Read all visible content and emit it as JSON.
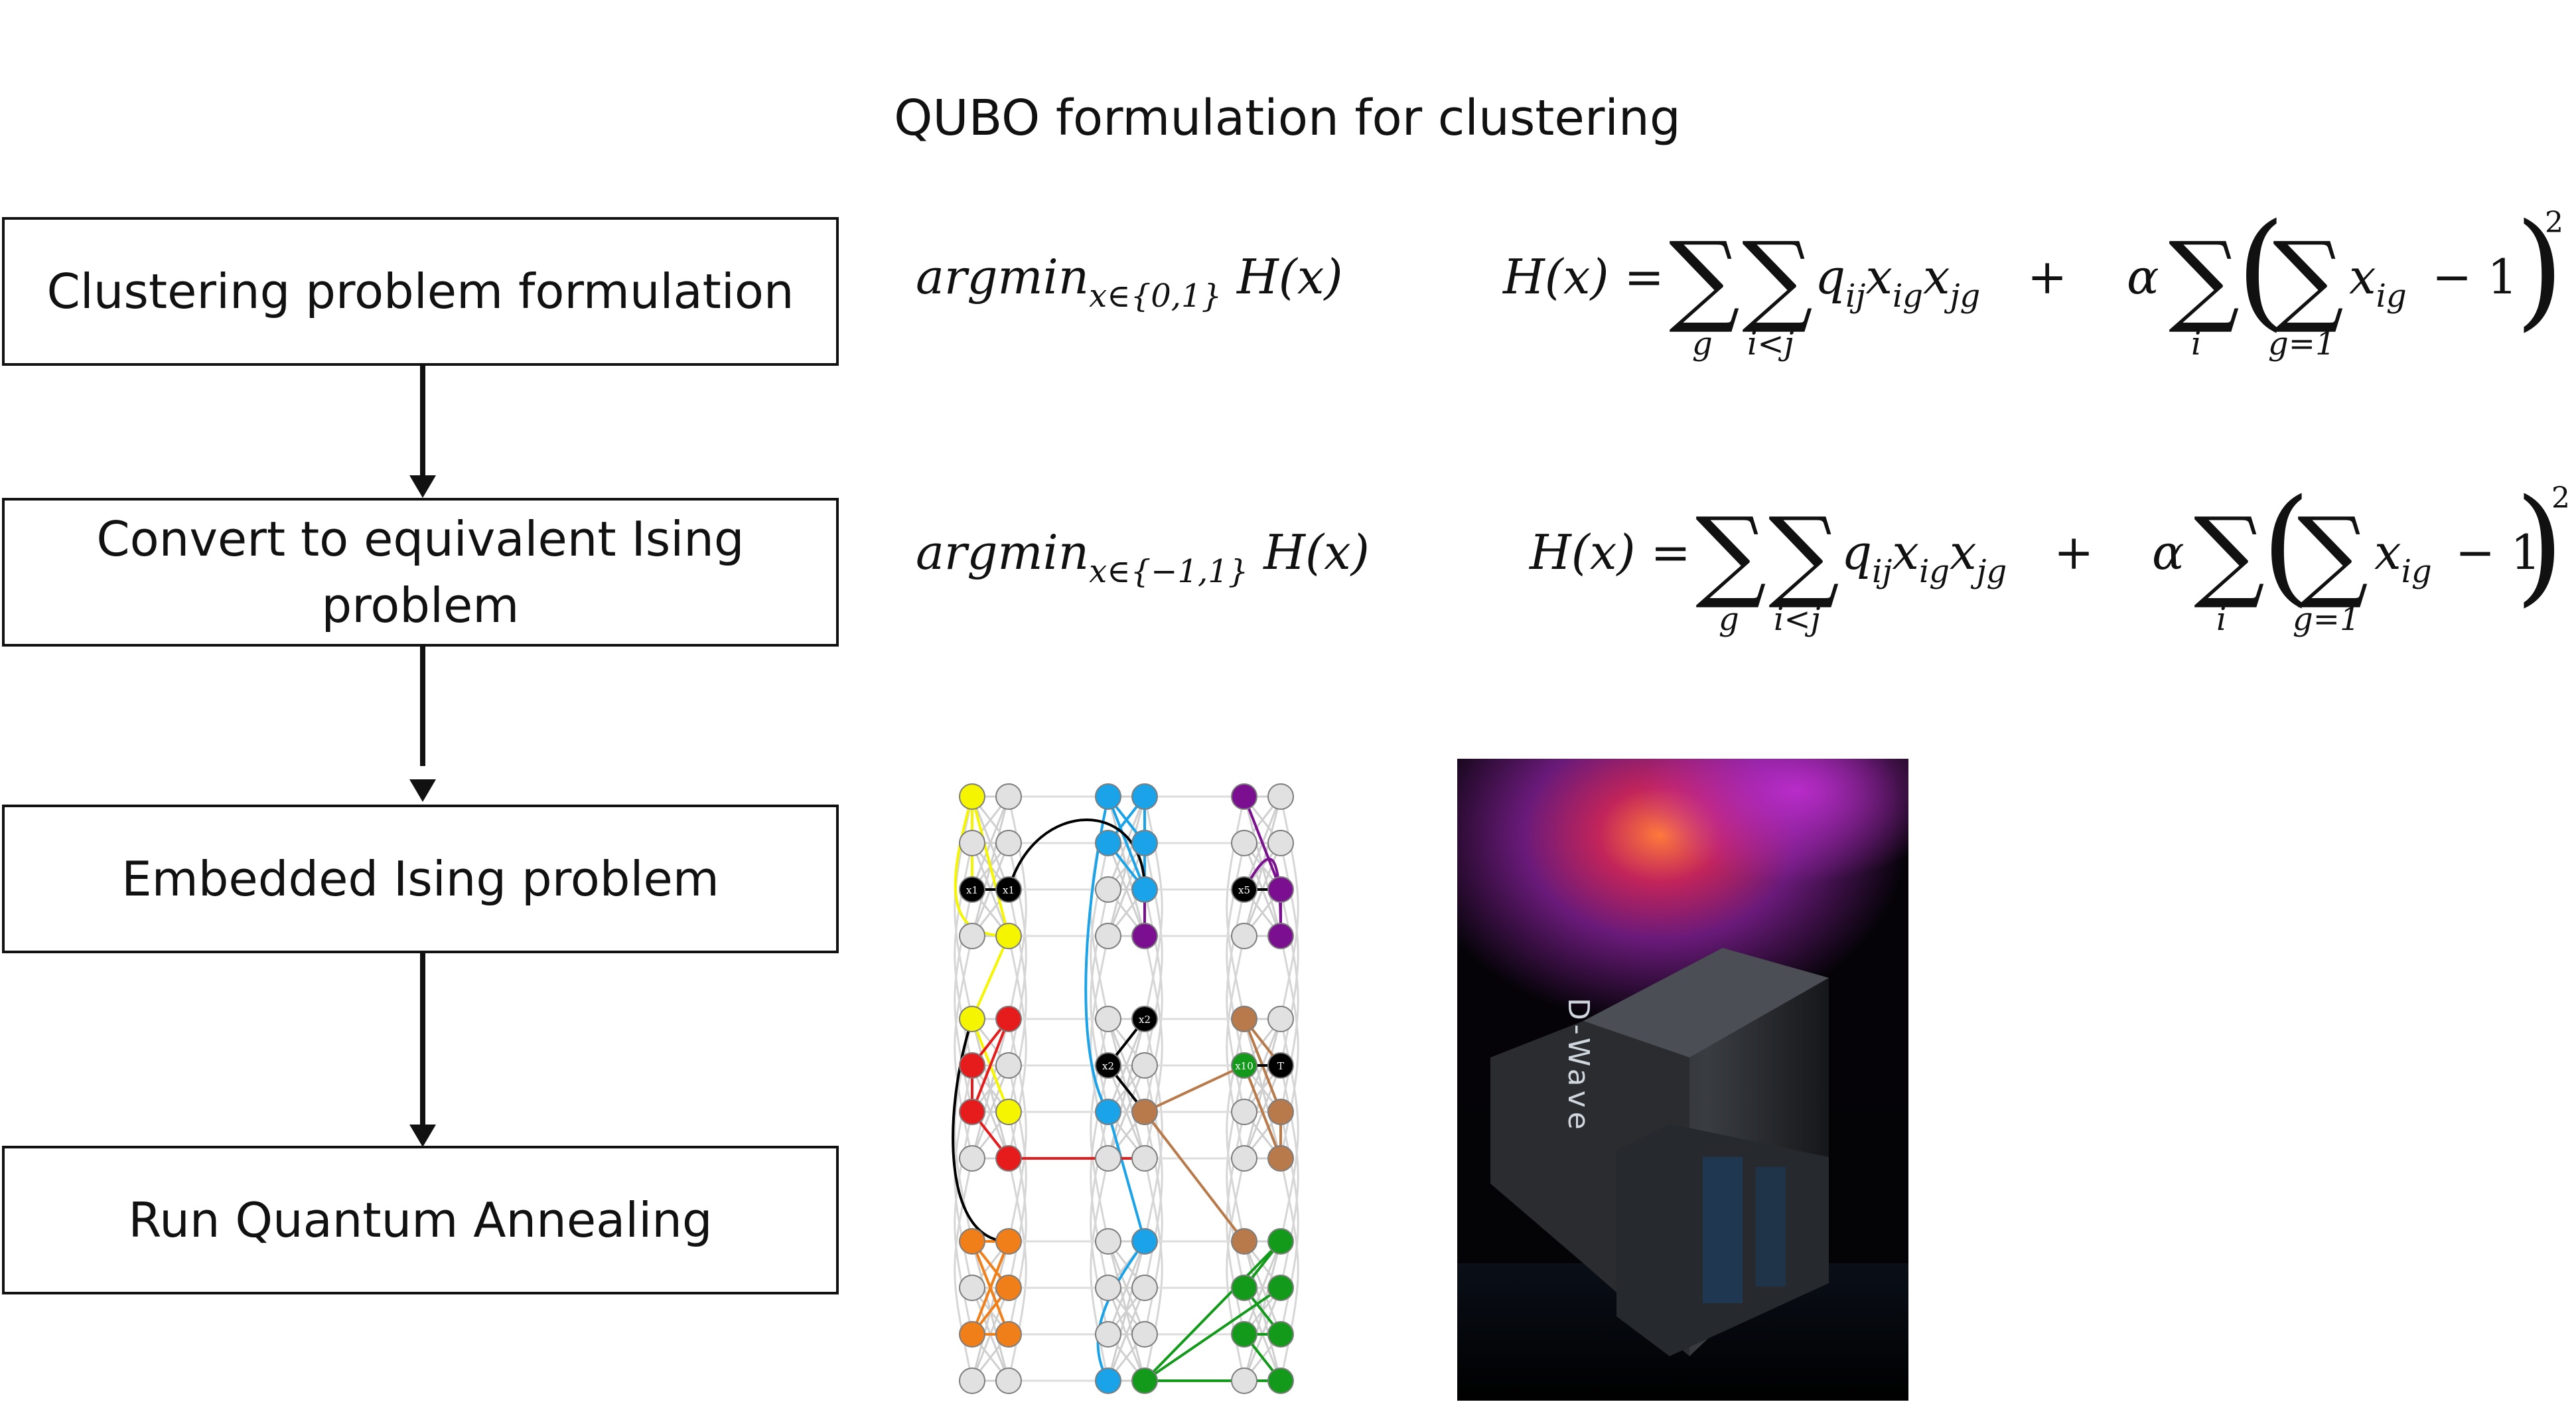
{
  "title": "QUBO formulation for clustering",
  "steps": [
    {
      "label": "Clustering problem formulation"
    },
    {
      "label": "Convert to equivalent Ising problem"
    },
    {
      "label": "Embedded Ising problem"
    },
    {
      "label": "Run Quantum Annealing"
    }
  ],
  "formulas": {
    "qubo": {
      "argmin": "argmin",
      "domain": "x∈{0,1}",
      "hx": "H(x)",
      "lhs": "H(x) =",
      "term1": "q",
      "term1_sub": "ij",
      "term1_x1": "x",
      "term1_x1_sub": "ig",
      "term1_x2": "x",
      "term1_x2_sub": "jg",
      "plus": "+",
      "alpha": "α",
      "inner_x": "x",
      "inner_x_sub": "ig",
      "minus_one": "− 1",
      "exponent": "2",
      "sum1_lim": "g",
      "sum2_lim": "i<j",
      "sum3_lim": "i",
      "sum4_lim": "g=1"
    },
    "ising": {
      "argmin": "argmin",
      "domain": "x∈{−1,1}",
      "hx": "H(x)",
      "lhs": "H(x) =",
      "term1": "q",
      "term1_sub": "ij",
      "term1_x1": "x",
      "term1_x1_sub": "ig",
      "term1_x2": "x",
      "term1_x2_sub": "jg",
      "plus": "+",
      "alpha": "α",
      "inner_x": "x",
      "inner_x_sub": "ig",
      "minus_one": "− 1",
      "exponent": "2",
      "sum1_lim": "g",
      "sum2_lim": "i<j",
      "sum3_lim": "i",
      "sum4_lim": "g=1"
    }
  },
  "graph": {
    "node_labels": [
      "x1",
      "x1",
      "x5",
      "x2",
      "x2",
      "x10",
      "T"
    ],
    "colors": {
      "yellow": "#f5f500",
      "cyan": "#1aa3e8",
      "purple": "#7a0f8f",
      "red": "#e61c1c",
      "brown": "#b87a4a",
      "orange": "#f07f1a",
      "green": "#139a1a",
      "gray": "#e1e1e1",
      "black": "#000000"
    }
  },
  "photo": {
    "brand_text": "D-Wave"
  }
}
